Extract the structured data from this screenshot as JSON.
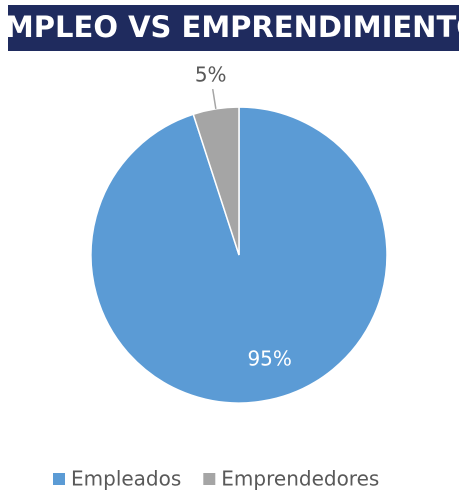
{
  "chart_data": {
    "type": "pie",
    "title": "EMPLEO VS EMPRENDIMIENTO",
    "categories": [
      "Empleados",
      "Emprendedores"
    ],
    "values": [
      95,
      5
    ],
    "value_labels": [
      "95%",
      "5%"
    ],
    "colors": [
      "#5b9bd5",
      "#a5a5a5"
    ],
    "legend": "bottom"
  }
}
